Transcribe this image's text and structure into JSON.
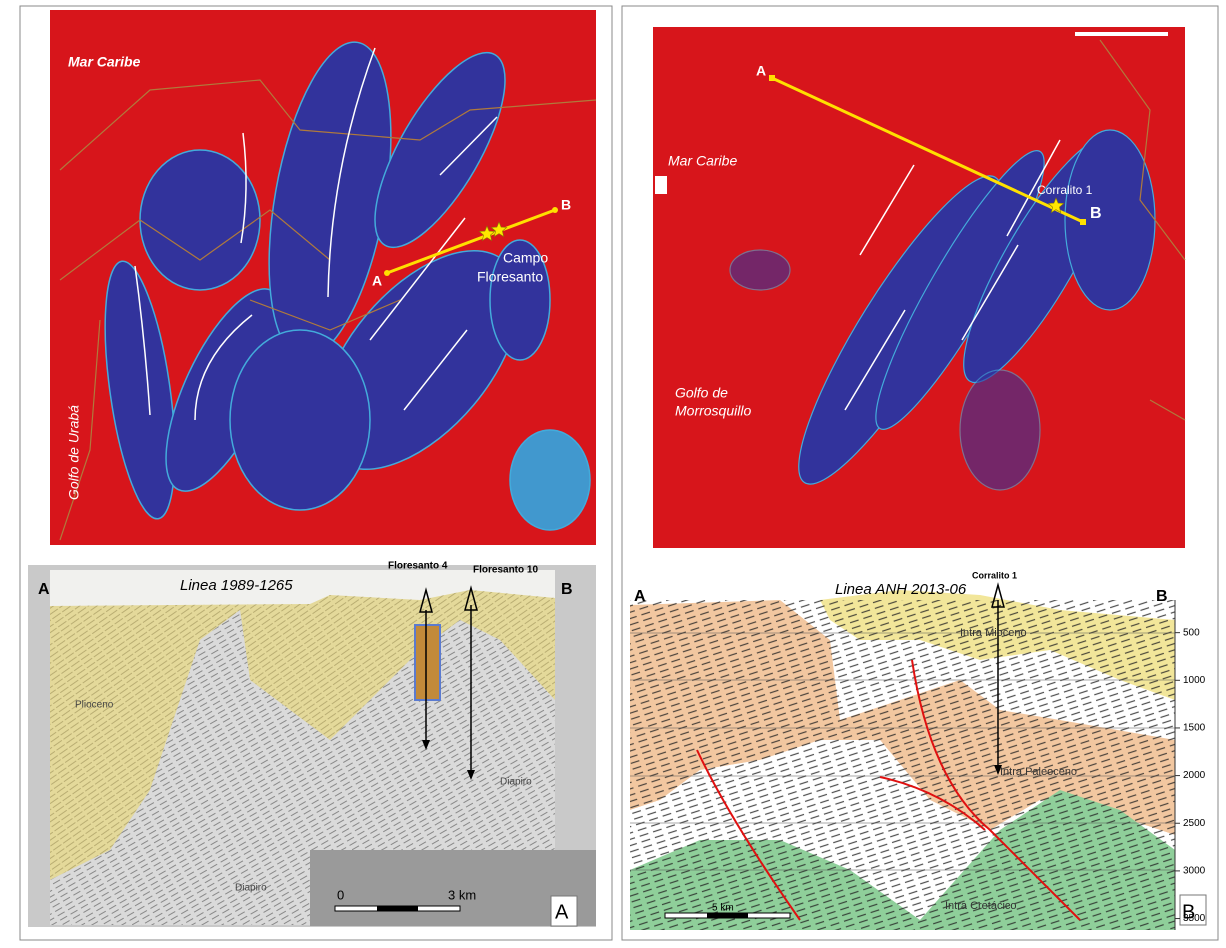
{
  "left": {
    "map": {
      "sea": "Mar Caribe",
      "gulf": "Golfo de Urabá",
      "point_a": "A",
      "point_b": "B",
      "field": [
        "Campo",
        "Floresanto"
      ]
    },
    "section": {
      "title": "Linea 1989-1265",
      "end_a": "A",
      "end_b": "B",
      "wells": [
        "Floresanto 4",
        "Floresanto 10"
      ],
      "units": [
        "Plioceno",
        "Diapiro",
        "Diapiro"
      ],
      "scale": [
        "0",
        "3 km"
      ]
    },
    "panel_label": "A"
  },
  "right": {
    "map": {
      "sea": "Mar Caribe",
      "gulf": [
        "Golfo de",
        "Morrosquillo"
      ],
      "point_a": "A",
      "point_b": "B",
      "well": "Corralito 1"
    },
    "section": {
      "title": "Linea ANH 2013-06",
      "end_a": "A",
      "end_b": "B",
      "well": "Corralito 1",
      "units": [
        "Intra Mioceno",
        "Intra Paleoceno",
        "Intra Cretácico"
      ],
      "depth_ticks": [
        500,
        1000,
        1500,
        2000,
        2500,
        3000,
        3500
      ],
      "scale": "5 km"
    },
    "panel_label": "B"
  }
}
